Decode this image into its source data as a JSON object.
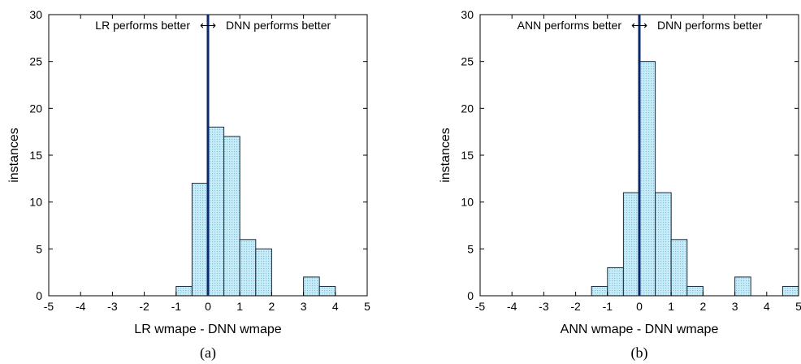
{
  "chart_data": [
    {
      "type": "bar",
      "panel_label": "(a)",
      "xlabel": "LR wmape - DNN wmape",
      "ylabel": "instances",
      "xlim": [
        -5,
        5
      ],
      "ylim": [
        0,
        30
      ],
      "xticks": [
        "-5",
        "-4",
        "-3",
        "-2",
        "-1",
        "0",
        "1",
        "2",
        "3",
        "4",
        "5"
      ],
      "yticks": [
        "0",
        "5",
        "10",
        "15",
        "20",
        "25",
        "30"
      ],
      "bin_width": 0.5,
      "bins": [
        {
          "x0": -1.0,
          "x1": -0.5,
          "count": 1
        },
        {
          "x0": -0.5,
          "x1": 0.0,
          "count": 12
        },
        {
          "x0": 0.0,
          "x1": 0.5,
          "count": 18
        },
        {
          "x0": 0.5,
          "x1": 1.0,
          "count": 17
        },
        {
          "x0": 1.0,
          "x1": 1.5,
          "count": 6
        },
        {
          "x0": 1.5,
          "x1": 2.0,
          "count": 5
        },
        {
          "x0": 3.0,
          "x1": 3.5,
          "count": 2
        },
        {
          "x0": 3.5,
          "x1": 4.0,
          "count": 1
        }
      ],
      "vline_x": 0,
      "annotation_left": "LR performs better",
      "annotation_right": "DNN performs better",
      "arrow_glyph": "⟷",
      "bar_color": "#c8ecf8",
      "bar_edge_color": "#1a2a3a",
      "vline_color": "#0b2a6b"
    },
    {
      "type": "bar",
      "panel_label": "(b)",
      "xlabel": "ANN wmape - DNN wmape",
      "ylabel": "instances",
      "xlim": [
        -5,
        5
      ],
      "ylim": [
        0,
        30
      ],
      "xticks": [
        "-5",
        "-4",
        "-3",
        "-2",
        "-1",
        "0",
        "1",
        "2",
        "3",
        "4",
        "5"
      ],
      "yticks": [
        "0",
        "5",
        "10",
        "15",
        "20",
        "25",
        "30"
      ],
      "bin_width": 0.5,
      "bins": [
        {
          "x0": -1.5,
          "x1": -1.0,
          "count": 1
        },
        {
          "x0": -1.0,
          "x1": -0.5,
          "count": 3
        },
        {
          "x0": -0.5,
          "x1": 0.0,
          "count": 11
        },
        {
          "x0": 0.0,
          "x1": 0.5,
          "count": 25
        },
        {
          "x0": 0.5,
          "x1": 1.0,
          "count": 11
        },
        {
          "x0": 1.0,
          "x1": 1.5,
          "count": 6
        },
        {
          "x0": 1.5,
          "x1": 2.0,
          "count": 1
        },
        {
          "x0": 3.0,
          "x1": 3.5,
          "count": 2
        },
        {
          "x0": 4.5,
          "x1": 5.0,
          "count": 1
        }
      ],
      "vline_x": 0,
      "annotation_left": "ANN performs better",
      "annotation_right": "DNN performs better",
      "arrow_glyph": "⟷",
      "bar_color": "#c8ecf8",
      "bar_edge_color": "#1a2a3a",
      "vline_color": "#0b2a6b"
    }
  ]
}
